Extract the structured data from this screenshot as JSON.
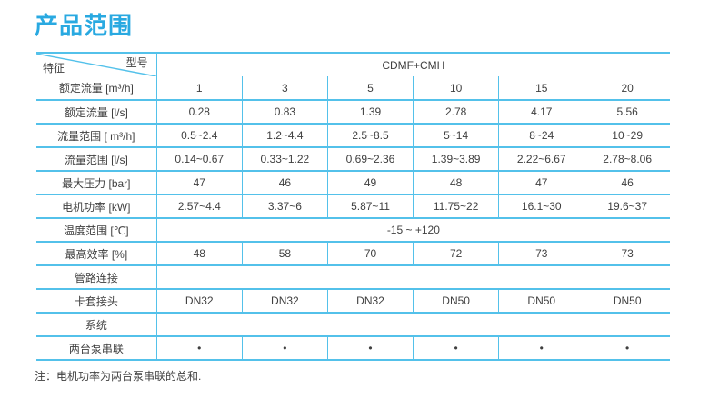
{
  "title": "产品范围",
  "colors": {
    "accent": "#29a9e1",
    "table_border": "#53c1ea",
    "text": "#3f3f3f"
  },
  "table": {
    "corner": {
      "top_label": "型号",
      "bottom_label": "特征"
    },
    "model_header": "CDMF+CMH",
    "rows": [
      {
        "label": "额定流量 [m³/h]",
        "values": [
          "1",
          "3",
          "5",
          "10",
          "15",
          "20"
        ]
      },
      {
        "label": "额定流量 [l/s]",
        "values": [
          "0.28",
          "0.83",
          "1.39",
          "2.78",
          "4.17",
          "5.56"
        ]
      },
      {
        "label": "流量范围 [ m³/h]",
        "values": [
          "0.5~2.4",
          "1.2~4.4",
          "2.5~8.5",
          "5~14",
          "8~24",
          "10~29"
        ]
      },
      {
        "label": "流量范围 [l/s]",
        "values": [
          "0.14~0.67",
          "0.33~1.22",
          "0.69~2.36",
          "1.39~3.89",
          "2.22~6.67",
          "2.78~8.06"
        ]
      },
      {
        "label": "最大压力 [bar]",
        "values": [
          "47",
          "46",
          "49",
          "48",
          "47",
          "46"
        ]
      },
      {
        "label": "电机功率 [kW]",
        "values": [
          "2.57~4.4",
          "3.37~6",
          "5.87~11",
          "11.75~22",
          "16.1~30",
          "19.6~37"
        ]
      },
      {
        "label": "温度范围 [℃]",
        "merged": true,
        "value": "-15 ~ +120"
      },
      {
        "label": "最高效率 [%]",
        "values": [
          "48",
          "58",
          "70",
          "72",
          "73",
          "73"
        ]
      },
      {
        "label": "管路连接",
        "merged": true,
        "value": ""
      },
      {
        "label": "卡套接头",
        "values": [
          "DN32",
          "DN32",
          "DN32",
          "DN50",
          "DN50",
          "DN50"
        ]
      },
      {
        "label": "系统",
        "merged": true,
        "value": ""
      },
      {
        "label": "两台泵串联",
        "values": [
          "•",
          "•",
          "•",
          "•",
          "•",
          "•"
        ]
      }
    ]
  },
  "footnote": "注：电机功率为两台泵串联的总和."
}
